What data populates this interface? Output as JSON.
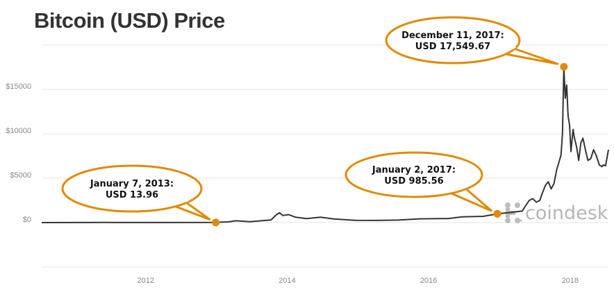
{
  "chart_data": {
    "type": "line",
    "title": "Bitcoin (USD) Price",
    "xlabel": "",
    "ylabel": "",
    "xlim": [
      2010.56,
      2018.57
    ],
    "ylim": [
      -5000,
      20000
    ],
    "grid": true,
    "x_ticks": [
      {
        "value": 2012,
        "label": "2012"
      },
      {
        "value": 2014,
        "label": "2014"
      },
      {
        "value": 2016,
        "label": "2016"
      },
      {
        "value": 2018,
        "label": "2018"
      }
    ],
    "y_ticks": [
      {
        "value": 0,
        "label": "$0"
      },
      {
        "value": 5000,
        "label": "$5000"
      },
      {
        "value": 10000,
        "label": "$10000"
      },
      {
        "value": 15000,
        "label": "$15000"
      }
    ],
    "gridlines": [
      -5000,
      0,
      5000,
      10000,
      15000,
      20000
    ],
    "series": [
      {
        "name": "Bitcoin price (USD)",
        "color": "#333333",
        "x": [
          2010.56,
          2011.2,
          2011.45,
          2011.6,
          2012.0,
          2012.5,
          2013.0,
          2013.2,
          2013.3,
          2013.5,
          2013.8,
          2013.88,
          2013.92,
          2013.97,
          2014.05,
          2014.15,
          2014.3,
          2014.5,
          2014.7,
          2015.0,
          2015.3,
          2015.6,
          2015.9,
          2016.0,
          2016.3,
          2016.5,
          2016.8,
          2017.0,
          2017.2,
          2017.35,
          2017.45,
          2017.5,
          2017.55,
          2017.6,
          2017.63,
          2017.68,
          2017.72,
          2017.76,
          2017.8,
          2017.84,
          2017.87,
          2017.9,
          2017.92,
          2017.94,
          2017.96,
          2017.98,
          2018.0,
          2018.02,
          2018.04,
          2018.07,
          2018.09,
          2018.12,
          2018.15,
          2018.18,
          2018.21,
          2018.25,
          2018.28,
          2018.32,
          2018.36,
          2018.4,
          2018.44,
          2018.48,
          2018.5,
          2018.53,
          2018.57
        ],
        "y": [
          0,
          5,
          25,
          10,
          5,
          10,
          13.96,
          80,
          200,
          100,
          300,
          900,
          1100,
          800,
          900,
          600,
          450,
          600,
          400,
          250,
          240,
          280,
          420,
          430,
          450,
          650,
          700,
          985.56,
          1150,
          1300,
          2500,
          2700,
          2300,
          2500,
          3200,
          4200,
          4600,
          3800,
          4400,
          6000,
          6800,
          7600,
          10000,
          17549.67,
          14000,
          15500,
          12000,
          11000,
          8000,
          10500,
          9500,
          8500,
          7000,
          9000,
          9500,
          8000,
          7000,
          7200,
          8200,
          7500,
          6500,
          6300,
          6500,
          6400,
          8200
        ]
      }
    ],
    "annotations": [
      {
        "line1": "January 7,  2013:",
        "line2": "USD 13.96",
        "x": 2013.02,
        "y": 13.96
      },
      {
        "line1": "January 2, 2017:",
        "line2": "USD 985.56",
        "x": 2017.0,
        "y": 985.56
      },
      {
        "line1": "December 11, 2017:",
        "line2": "USD 17,549.67",
        "x": 2017.94,
        "y": 17549.67
      }
    ],
    "accent_color": "#e08a00"
  },
  "logo": {
    "text": "coindesk"
  }
}
